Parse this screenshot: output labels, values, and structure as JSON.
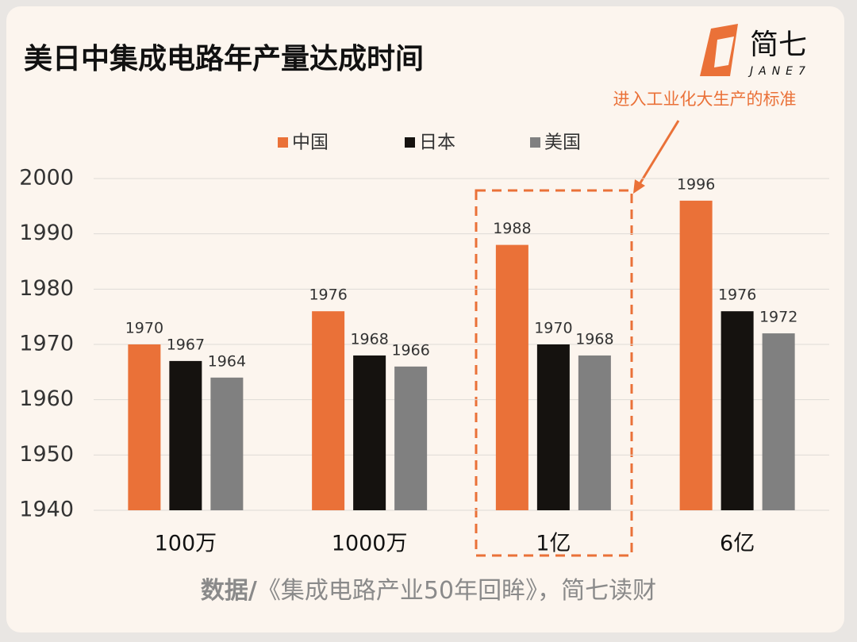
{
  "chart_data": {
    "type": "bar",
    "title": "美日中集成电路年产量达成时间",
    "logo": {
      "name": "简七",
      "sub": "JANE7"
    },
    "annotation": "进入工业化大生产的标准",
    "source_label": "数据/",
    "source": "《集成电路产业50年回眸》，简七读财",
    "categories": [
      "100万",
      "1000万",
      "1亿",
      "6亿"
    ],
    "series": [
      {
        "name": "中国",
        "color": "#ea7138",
        "values": [
          1970,
          1976,
          1988,
          1996
        ]
      },
      {
        "name": "日本",
        "color": "#15120f",
        "values": [
          1967,
          1968,
          1970,
          1976
        ]
      },
      {
        "name": "美国",
        "color": "#808080",
        "values": [
          1964,
          1966,
          1968,
          1972
        ]
      }
    ],
    "ylim": [
      1940,
      2000
    ],
    "yticks": [
      1940,
      1950,
      1960,
      1970,
      1980,
      1990,
      2000
    ],
    "grid": true,
    "legend": "top"
  }
}
